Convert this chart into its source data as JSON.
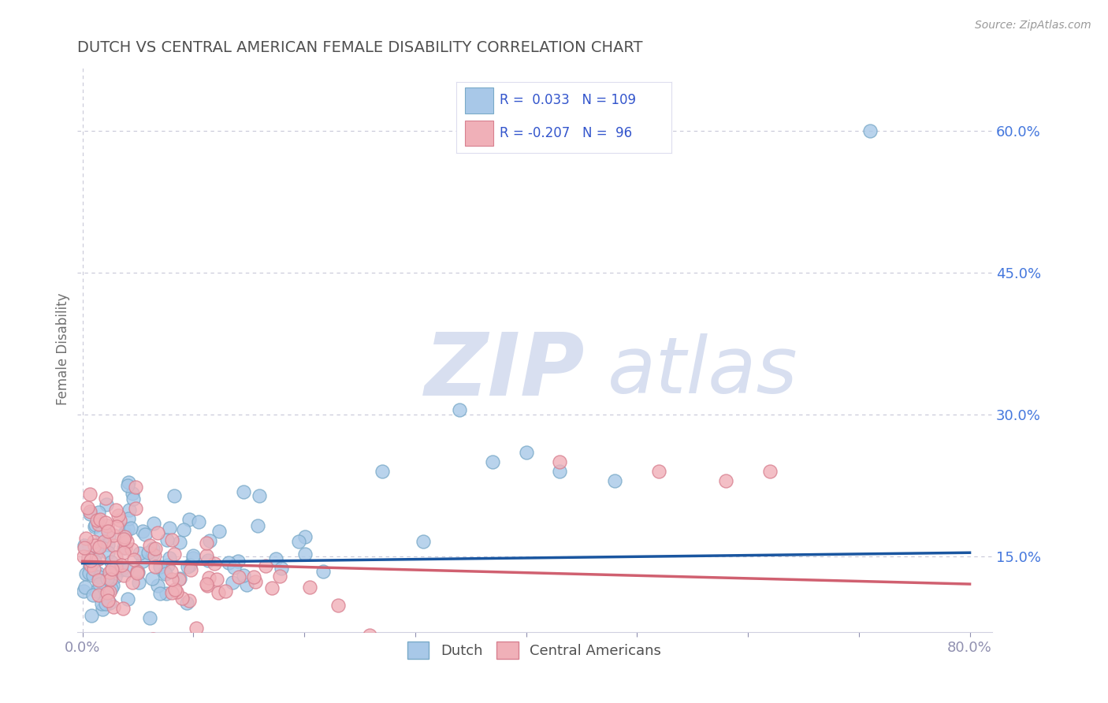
{
  "title": "DUTCH VS CENTRAL AMERICAN FEMALE DISABILITY CORRELATION CHART",
  "source_text": "Source: ZipAtlas.com",
  "ylabel": "Female Disability",
  "xlim": [
    -0.005,
    0.82
  ],
  "ylim": [
    0.07,
    0.67
  ],
  "yticks": [
    0.15,
    0.3,
    0.45,
    0.6
  ],
  "ytick_labels": [
    "15.0%",
    "30.0%",
    "45.0%",
    "60.0%"
  ],
  "dutch_color": "#a8c8e8",
  "dutch_edge_color": "#7aaac8",
  "ca_color": "#f0b0b8",
  "ca_edge_color": "#d88090",
  "dutch_line_color": "#1a56a0",
  "ca_line_color": "#d06070",
  "dutch_R": 0.033,
  "dutch_N": 109,
  "ca_R": -0.207,
  "ca_N": 96,
  "legend_color": "#3355cc",
  "title_color": "#505050",
  "axis_label_color": "#707070",
  "tick_color": "#9090b0",
  "grid_color": "#c8c8d8",
  "watermark_color": "#d8dff0",
  "right_tick_color": "#4477dd"
}
